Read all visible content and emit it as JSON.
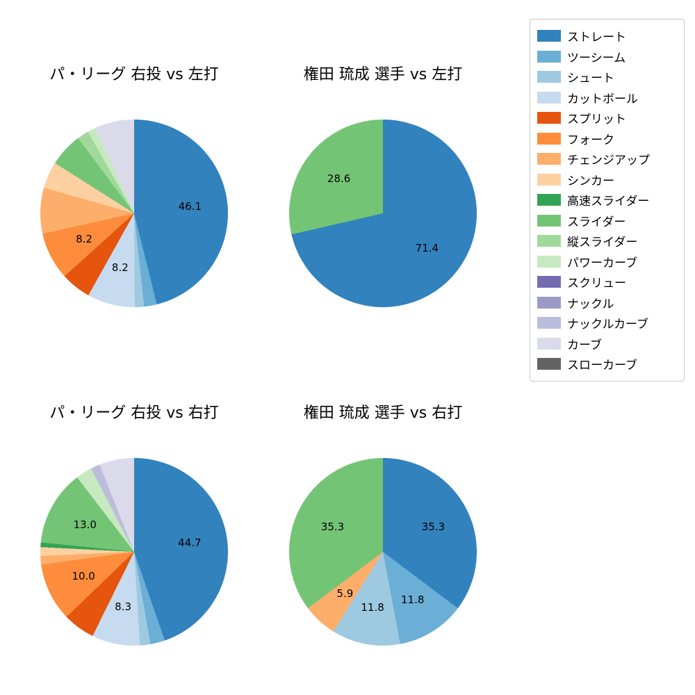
{
  "background": "#ffffff",
  "legend": {
    "position": "upper right",
    "items": [
      {
        "label": "ストレート",
        "color": "#3182bd"
      },
      {
        "label": "ツーシーム",
        "color": "#6baed6"
      },
      {
        "label": "シュート",
        "color": "#9ecae1"
      },
      {
        "label": "カットボール",
        "color": "#c6dbef"
      },
      {
        "label": "スプリット",
        "color": "#e6550d"
      },
      {
        "label": "フォーク",
        "color": "#fd8d3c"
      },
      {
        "label": "チェンジアップ",
        "color": "#fdae6b"
      },
      {
        "label": "シンカー",
        "color": "#fdd0a2"
      },
      {
        "label": "高速スライダー",
        "color": "#31a354"
      },
      {
        "label": "スライダー",
        "color": "#74c476"
      },
      {
        "label": "縦スライダー",
        "color": "#a1d99b"
      },
      {
        "label": "パワーカーブ",
        "color": "#c7e9c0"
      },
      {
        "label": "スクリュー",
        "color": "#756bb1"
      },
      {
        "label": "ナックル",
        "color": "#9e9ac8"
      },
      {
        "label": "ナックルカーブ",
        "color": "#bcbddc"
      },
      {
        "label": "カーブ",
        "color": "#dadaeb"
      },
      {
        "label": "スローカーブ",
        "color": "#636363"
      }
    ]
  },
  "chart_data": [
    {
      "type": "pie",
      "title": "パ・リーグ 右投 vs 左打",
      "start_angle": "top",
      "direction": "clockwise",
      "slices": [
        {
          "name": "ストレート",
          "value": 46.1,
          "label": "46.1"
        },
        {
          "name": "ツーシーム",
          "value": 2.2,
          "label": ""
        },
        {
          "name": "シュート",
          "value": 1.6,
          "label": ""
        },
        {
          "name": "カットボール",
          "value": 8.2,
          "label": "8.2"
        },
        {
          "name": "スプリット",
          "value": 5.2,
          "label": ""
        },
        {
          "name": "フォーク",
          "value": 8.2,
          "label": "8.2"
        },
        {
          "name": "チェンジアップ",
          "value": 7.9,
          "label": ""
        },
        {
          "name": "シンカー",
          "value": 4.6,
          "label": ""
        },
        {
          "name": "スライダー",
          "value": 5.8,
          "label": ""
        },
        {
          "name": "縦スライダー",
          "value": 2.0,
          "label": ""
        },
        {
          "name": "パワーカーブ",
          "value": 1.4,
          "label": ""
        },
        {
          "name": "カーブ",
          "value": 6.8,
          "label": ""
        }
      ]
    },
    {
      "type": "pie",
      "title": "権田 琉成 選手 vs 左打",
      "start_angle": "top",
      "direction": "clockwise",
      "slices": [
        {
          "name": "ストレート",
          "value": 71.4,
          "label": "71.4"
        },
        {
          "name": "スライダー",
          "value": 28.6,
          "label": "28.6"
        }
      ]
    },
    {
      "type": "pie",
      "title": "パ・リーグ 右投 vs 右打",
      "start_angle": "top",
      "direction": "clockwise",
      "slices": [
        {
          "name": "ストレート",
          "value": 44.7,
          "label": "44.7"
        },
        {
          "name": "ツーシーム",
          "value": 2.5,
          "label": ""
        },
        {
          "name": "シュート",
          "value": 1.8,
          "label": ""
        },
        {
          "name": "カットボール",
          "value": 8.3,
          "label": "8.3"
        },
        {
          "name": "スプリット",
          "value": 5.5,
          "label": ""
        },
        {
          "name": "フォーク",
          "value": 10.0,
          "label": "10.0"
        },
        {
          "name": "チェンジアップ",
          "value": 1.5,
          "label": ""
        },
        {
          "name": "シンカー",
          "value": 1.5,
          "label": ""
        },
        {
          "name": "高速スライダー",
          "value": 0.8,
          "label": ""
        },
        {
          "name": "スライダー",
          "value": 13.0,
          "label": "13.0"
        },
        {
          "name": "パワーカーブ",
          "value": 2.8,
          "label": ""
        },
        {
          "name": "ナックルカーブ",
          "value": 1.6,
          "label": ""
        },
        {
          "name": "カーブ",
          "value": 6.0,
          "label": ""
        }
      ]
    },
    {
      "type": "pie",
      "title": "権田 琉成 選手 vs 右打",
      "start_angle": "top",
      "direction": "clockwise",
      "slices": [
        {
          "name": "ストレート",
          "value": 35.3,
          "label": "35.3"
        },
        {
          "name": "ツーシーム",
          "value": 11.8,
          "label": "11.8"
        },
        {
          "name": "シュート",
          "value": 11.8,
          "label": "11.8"
        },
        {
          "name": "チェンジアップ",
          "value": 5.9,
          "label": "5.9"
        },
        {
          "name": "スライダー",
          "value": 35.3,
          "label": "35.3"
        }
      ]
    }
  ]
}
